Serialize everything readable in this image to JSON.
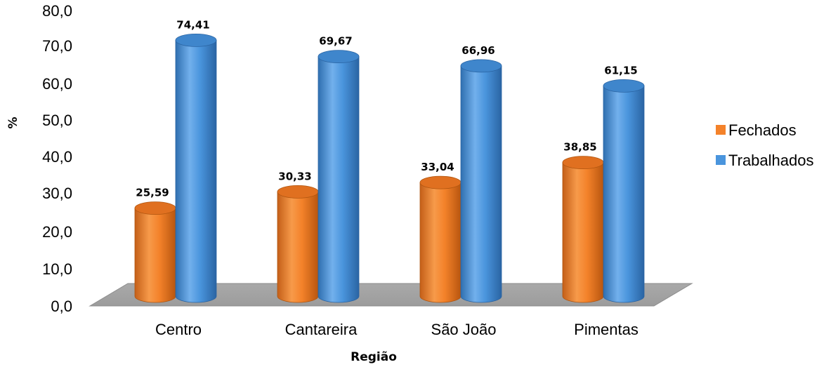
{
  "chart_data": {
    "type": "bar",
    "title": "",
    "xlabel": "Região",
    "ylabel": "%",
    "ylim": [
      0,
      80
    ],
    "yticks": [
      "0,0",
      "10,0",
      "20,0",
      "30,0",
      "40,0",
      "50,0",
      "60,0",
      "70,0",
      "80,0"
    ],
    "categories": [
      "Centro",
      "Cantareira",
      "São João",
      "Pimentas"
    ],
    "series": [
      {
        "name": "Fechados",
        "color": "#f4822a",
        "values": [
          25.59,
          30.33,
          33.04,
          38.85
        ],
        "labels": [
          "25,59",
          "30,33",
          "33,04",
          "38,85"
        ]
      },
      {
        "name": "Trabalhados",
        "color": "#4a95dd",
        "values": [
          74.41,
          69.67,
          66.96,
          61.15
        ],
        "labels": [
          "74,41",
          "69,67",
          "66,96",
          "61,15"
        ]
      }
    ],
    "legend_position": "right",
    "grid": false,
    "style": "3d-cylinder"
  }
}
